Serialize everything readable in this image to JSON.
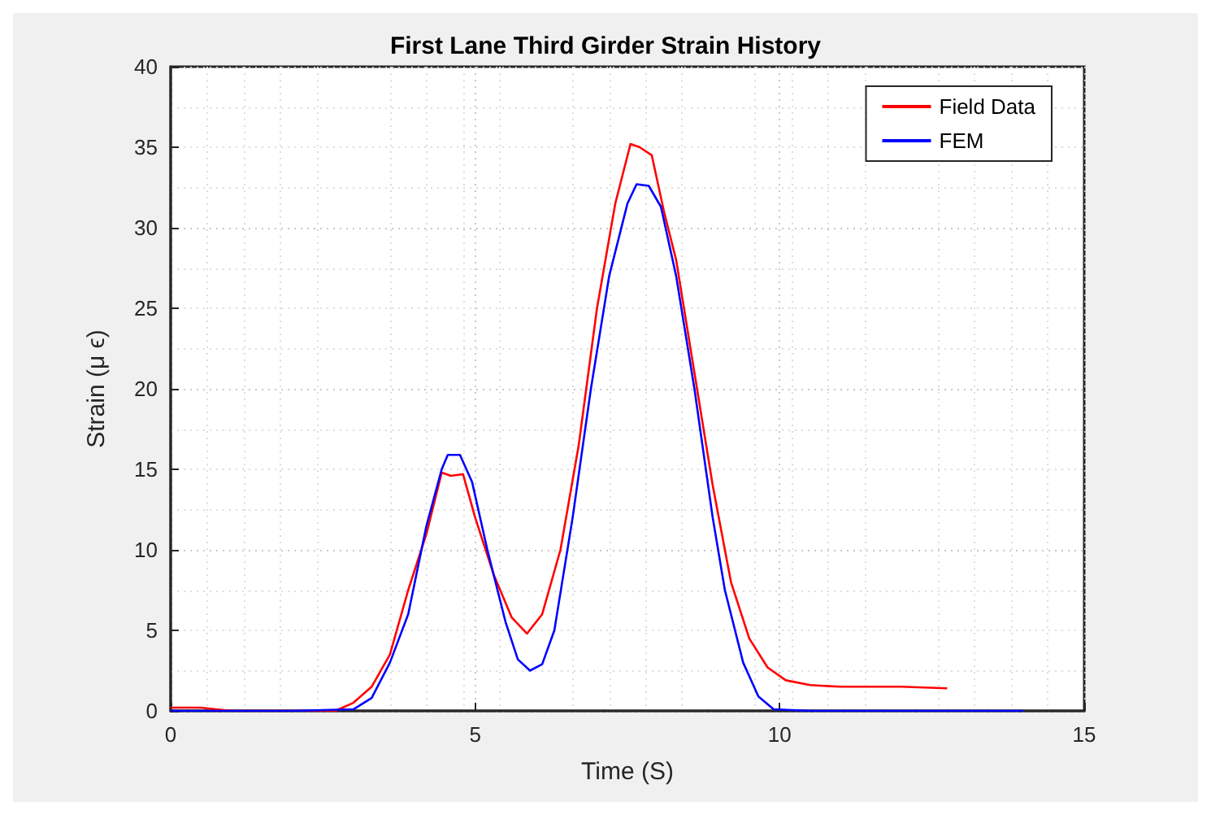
{
  "chart_data": {
    "type": "line",
    "title": "First Lane Third Girder Strain History",
    "xlabel": "Time (S)",
    "ylabel": "Strain (μ ϵ)",
    "xlim": [
      0,
      15
    ],
    "xticks": [
      0,
      5,
      10,
      15
    ],
    "ylim": [
      0,
      40
    ],
    "yticks": [
      0,
      5,
      10,
      15,
      20,
      25,
      30,
      35,
      40
    ],
    "grid": true,
    "legend": "top right",
    "marker": "none",
    "line_style": "solid",
    "series": [
      {
        "name": "Field Data",
        "color": "#ff0000",
        "x": [
          0,
          0.5,
          1,
          2,
          2.7,
          3,
          3.3,
          3.6,
          3.9,
          4.2,
          4.45,
          4.6,
          4.8,
          5.0,
          5.3,
          5.6,
          5.85,
          6.1,
          6.4,
          6.7,
          7.0,
          7.3,
          7.55,
          7.7,
          7.9,
          8.1,
          8.3,
          8.6,
          8.9,
          9.2,
          9.5,
          9.8,
          10.1,
          10.5,
          11,
          12,
          12.75
        ],
        "values": [
          0.2,
          0.2,
          0,
          0,
          0,
          0.5,
          1.5,
          3.5,
          7.5,
          11,
          14.8,
          14.6,
          14.7,
          12,
          8.5,
          5.8,
          4.8,
          6,
          10,
          16.5,
          25,
          31.5,
          35.2,
          35,
          34.5,
          31,
          28,
          21,
          14,
          8,
          4.5,
          2.7,
          1.9,
          1.6,
          1.5,
          1.5,
          1.4
        ]
      },
      {
        "name": "FEM",
        "color": "#0000ff",
        "x": [
          0,
          2,
          3,
          3.3,
          3.6,
          3.9,
          4.2,
          4.45,
          4.55,
          4.75,
          4.95,
          5.2,
          5.5,
          5.7,
          5.9,
          6.1,
          6.3,
          6.6,
          6.9,
          7.2,
          7.5,
          7.65,
          7.85,
          8.05,
          8.3,
          8.6,
          8.9,
          9.1,
          9.4,
          9.65,
          9.9,
          10.5,
          12,
          14
        ],
        "values": [
          0,
          0,
          0.1,
          0.8,
          3,
          6,
          11.5,
          15,
          15.9,
          15.9,
          14.2,
          10,
          5.5,
          3.2,
          2.5,
          2.9,
          5,
          12,
          20,
          27,
          31.5,
          32.7,
          32.6,
          31.3,
          27,
          20,
          12,
          7.5,
          3,
          0.9,
          0.1,
          0,
          0,
          0
        ]
      }
    ]
  }
}
